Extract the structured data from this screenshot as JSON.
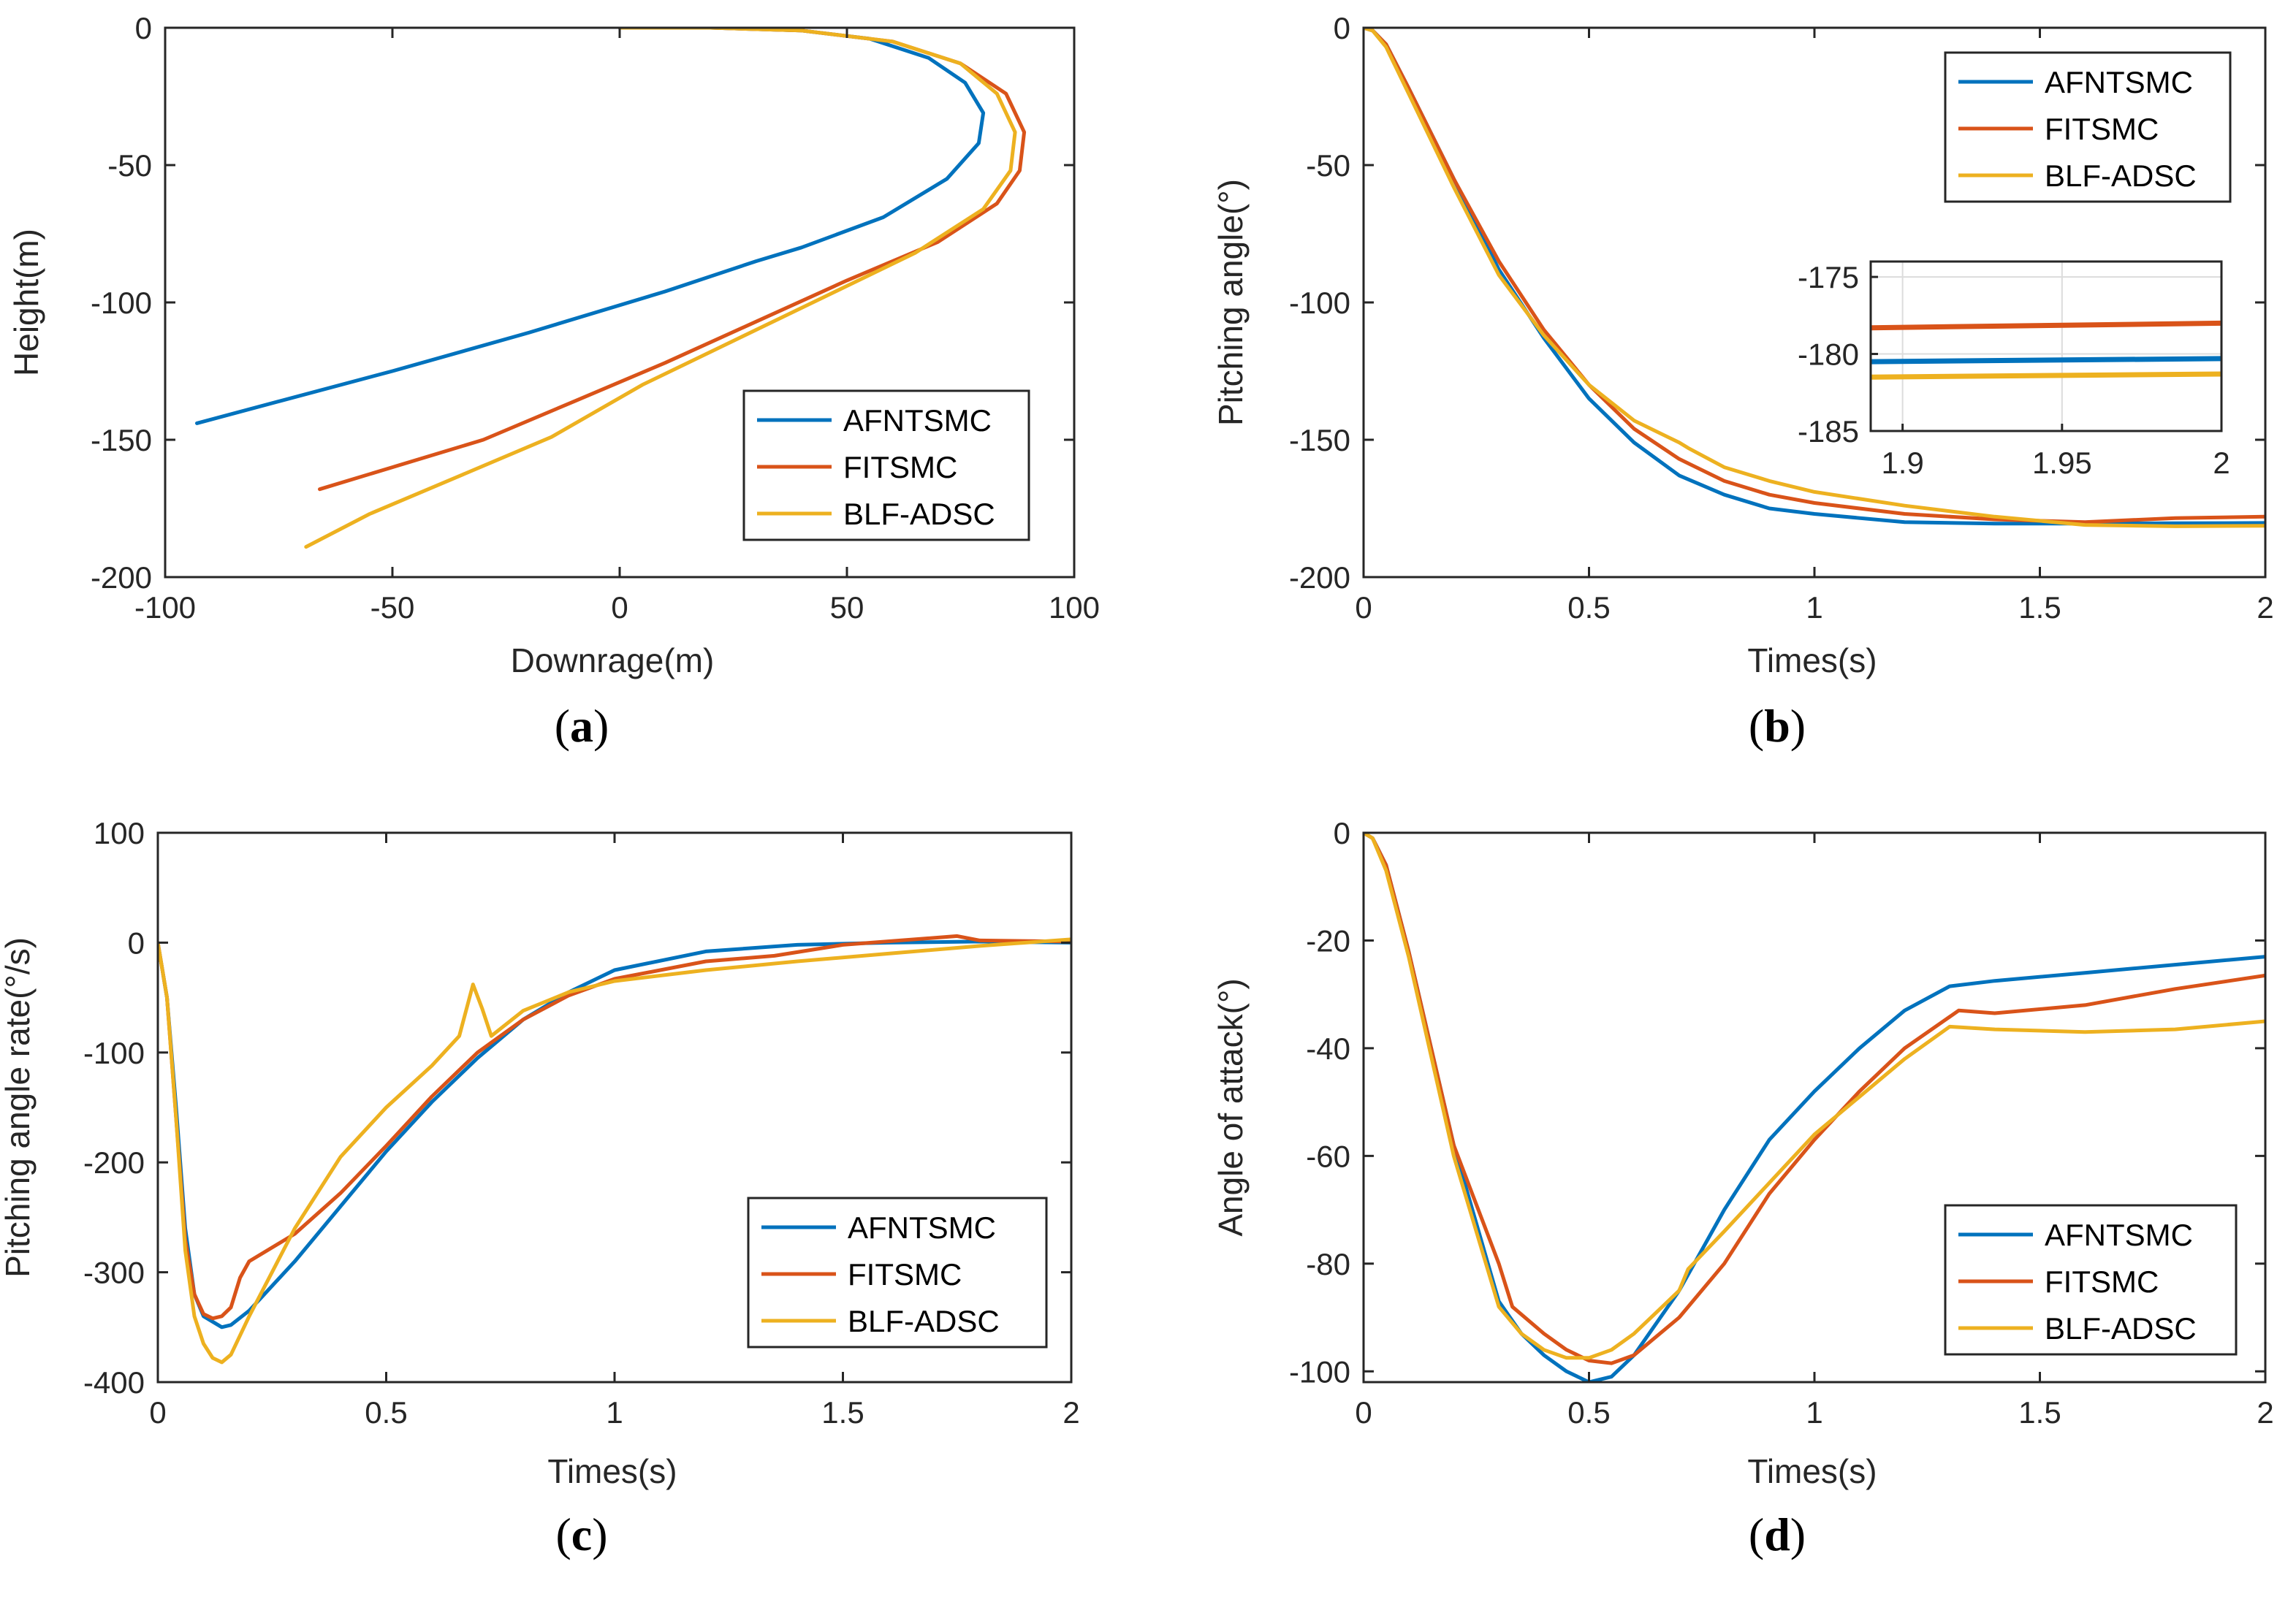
{
  "colors": {
    "AFNTSMC": "#0072BD",
    "FITSMC": "#D95319",
    "BLF-ADSC": "#EDB120",
    "axis": "#262626",
    "grid": "#dcdcdc"
  },
  "chart_data": [
    {
      "id": "a",
      "type": "line",
      "panel_label": "a",
      "xlabel": "Downrage(m)",
      "ylabel": "Height(m)",
      "xlim": [
        -100,
        100
      ],
      "ylim": [
        -200,
        0
      ],
      "xticks": [
        -100,
        -50,
        0,
        50,
        100
      ],
      "yticks": [
        0,
        -50,
        -100,
        -150,
        -200
      ],
      "xtick_labels": [
        "-100",
        "-50",
        "0",
        "50",
        "100"
      ],
      "ytick_labels": [
        "0",
        "-50",
        "-100",
        "-150",
        "-200"
      ],
      "legend": {
        "position": "bottom-right",
        "entries": [
          "AFNTSMC",
          "FITSMC",
          "BLF-ADSC"
        ]
      },
      "series": [
        {
          "name": "AFNTSMC",
          "x": [
            0,
            20,
            40,
            55,
            68,
            76,
            80,
            79,
            72,
            58,
            40,
            30,
            10,
            -20,
            -50,
            -75,
            -93
          ],
          "y": [
            0,
            0,
            -1,
            -4,
            -11,
            -20,
            -31,
            -42,
            -55,
            -69,
            -80,
            -85,
            -96,
            -111,
            -125,
            -136,
            -144
          ]
        },
        {
          "name": "FITSMC",
          "x": [
            0,
            20,
            40,
            60,
            75,
            85,
            89,
            88,
            83,
            70,
            50,
            30,
            10,
            -10,
            -30,
            -50,
            -66
          ],
          "y": [
            0,
            0,
            -1,
            -5,
            -13,
            -24,
            -38,
            -52,
            -64,
            -78,
            -92,
            -107,
            -122,
            -136,
            -150,
            -160,
            -168
          ]
        },
        {
          "name": "BLF-ADSC",
          "x": [
            0,
            20,
            40,
            60,
            75,
            83,
            87,
            86,
            80,
            65,
            45,
            25,
            5,
            -15,
            -35,
            -55,
            -69
          ],
          "y": [
            0,
            0,
            -1,
            -5,
            -13,
            -24,
            -38,
            -52,
            -66,
            -82,
            -98,
            -114,
            -130,
            -149,
            -163,
            -177,
            -189
          ]
        }
      ]
    },
    {
      "id": "b",
      "type": "line",
      "panel_label": "b",
      "xlabel": "Times(s)",
      "ylabel": "Pitching angle(°)",
      "xlim": [
        0,
        2
      ],
      "ylim": [
        -200,
        0
      ],
      "xticks": [
        0,
        0.5,
        1,
        1.5,
        2
      ],
      "yticks": [
        0,
        -50,
        -100,
        -150,
        -200
      ],
      "xtick_labels": [
        "0",
        "0.5",
        "1",
        "1.5",
        "2"
      ],
      "ytick_labels": [
        "0",
        "-50",
        "-100",
        "-150",
        "-200"
      ],
      "legend": {
        "position": "top-right",
        "entries": [
          "AFNTSMC",
          "FITSMC",
          "BLF-ADSC"
        ]
      },
      "series": [
        {
          "name": "AFNTSMC",
          "x": [
            0,
            0.02,
            0.05,
            0.1,
            0.2,
            0.3,
            0.4,
            0.5,
            0.6,
            0.7,
            0.8,
            0.9,
            1.0,
            1.2,
            1.4,
            1.6,
            1.8,
            2.0
          ],
          "y": [
            0,
            -1,
            -6,
            -22,
            -55,
            -88,
            -113,
            -135,
            -151,
            -163,
            -170,
            -175,
            -177,
            -180,
            -180.5,
            -180.5,
            -180.4,
            -180.3
          ]
        },
        {
          "name": "FITSMC",
          "x": [
            0,
            0.02,
            0.05,
            0.1,
            0.2,
            0.3,
            0.4,
            0.5,
            0.6,
            0.7,
            0.8,
            0.9,
            1.0,
            1.2,
            1.4,
            1.6,
            1.8,
            2.0
          ],
          "y": [
            0,
            -1,
            -6,
            -22,
            -55,
            -85,
            -110,
            -130,
            -146,
            -157,
            -165,
            -170,
            -173,
            -177,
            -179,
            -180,
            -178.5,
            -178
          ]
        },
        {
          "name": "BLF-ADSC",
          "x": [
            0,
            0.02,
            0.05,
            0.1,
            0.2,
            0.3,
            0.4,
            0.5,
            0.6,
            0.7,
            0.72,
            0.8,
            0.9,
            1.0,
            1.2,
            1.4,
            1.6,
            1.8,
            2.0
          ],
          "y": [
            0,
            -1,
            -7,
            -24,
            -58,
            -90,
            -112,
            -130,
            -143,
            -151,
            -153,
            -160,
            -165,
            -169,
            -174,
            -178,
            -181,
            -181.5,
            -181.3
          ]
        }
      ],
      "inset": {
        "xlim": [
          1.89,
          2
        ],
        "ylim": [
          -185,
          -174
        ],
        "xticks": [
          1.9,
          1.95,
          2
        ],
        "yticks": [
          -175,
          -180,
          -185
        ],
        "xtick_labels": [
          "1.9",
          "1.95",
          "2"
        ],
        "ytick_labels": [
          "-175",
          "-180",
          "-185"
        ],
        "grid": true,
        "series": [
          {
            "name": "AFNTSMC",
            "x": [
              1.89,
              2.0
            ],
            "y": [
              -180.5,
              -180.3
            ]
          },
          {
            "name": "FITSMC",
            "x": [
              1.89,
              2.0
            ],
            "y": [
              -178.3,
              -178.0
            ]
          },
          {
            "name": "BLF-ADSC",
            "x": [
              1.89,
              2.0
            ],
            "y": [
              -181.5,
              -181.3
            ]
          }
        ]
      }
    },
    {
      "id": "c",
      "type": "line",
      "panel_label": "c",
      "xlabel": "Times(s)",
      "ylabel": "Pitching angle rate(°/s)",
      "xlim": [
        0,
        2
      ],
      "ylim": [
        -400,
        100
      ],
      "xticks": [
        0,
        0.5,
        1,
        1.5,
        2
      ],
      "yticks": [
        100,
        0,
        -100,
        -200,
        -300,
        -400
      ],
      "xtick_labels": [
        "0",
        "0.5",
        "1",
        "1.5",
        "2"
      ],
      "ytick_labels": [
        "100",
        "0",
        "-100",
        "-200",
        "-300",
        "-400"
      ],
      "legend": {
        "position": "bottom-right",
        "entries": [
          "AFNTSMC",
          "FITSMC",
          "BLF-ADSC"
        ]
      },
      "series": [
        {
          "name": "AFNTSMC",
          "x": [
            0,
            0.02,
            0.04,
            0.06,
            0.08,
            0.1,
            0.12,
            0.14,
            0.16,
            0.2,
            0.3,
            0.4,
            0.5,
            0.6,
            0.7,
            0.8,
            0.9,
            1.0,
            1.2,
            1.4,
            1.6,
            1.8,
            2.0
          ],
          "y": [
            0,
            -50,
            -150,
            -260,
            -320,
            -340,
            -345,
            -350,
            -348,
            -335,
            -290,
            -240,
            -190,
            -145,
            -105,
            -70,
            -45,
            -25,
            -8,
            -2,
            0,
            1,
            0
          ]
        },
        {
          "name": "FITSMC",
          "x": [
            0,
            0.02,
            0.04,
            0.06,
            0.08,
            0.1,
            0.12,
            0.14,
            0.16,
            0.18,
            0.2,
            0.3,
            0.4,
            0.5,
            0.6,
            0.7,
            0.8,
            0.9,
            1.0,
            1.2,
            1.35,
            1.5,
            1.75,
            1.8,
            2.0
          ],
          "y": [
            0,
            -50,
            -160,
            -270,
            -320,
            -338,
            -342,
            -340,
            -332,
            -305,
            -290,
            -265,
            -228,
            -185,
            -140,
            -100,
            -70,
            -48,
            -33,
            -17,
            -12,
            -2,
            6,
            2,
            1
          ]
        },
        {
          "name": "BLF-ADSC",
          "x": [
            0,
            0.02,
            0.04,
            0.06,
            0.08,
            0.1,
            0.12,
            0.14,
            0.16,
            0.2,
            0.3,
            0.4,
            0.5,
            0.6,
            0.66,
            0.69,
            0.71,
            0.73,
            0.8,
            0.9,
            1.0,
            1.2,
            1.4,
            1.6,
            1.8,
            2.0
          ],
          "y": [
            0,
            -50,
            -160,
            -280,
            -340,
            -365,
            -378,
            -382,
            -375,
            -340,
            -260,
            -195,
            -150,
            -112,
            -85,
            -38,
            -60,
            -85,
            -62,
            -45,
            -35,
            -25,
            -17,
            -10,
            -3,
            3
          ]
        }
      ]
    },
    {
      "id": "d",
      "type": "line",
      "panel_label": "d",
      "xlabel": "Times(s)",
      "ylabel": "Angle of attack(°)",
      "xlim": [
        0,
        2
      ],
      "ylim": [
        -102,
        0
      ],
      "xticks": [
        0,
        0.5,
        1,
        1.5,
        2
      ],
      "yticks": [
        0,
        -20,
        -40,
        -60,
        -80,
        -100
      ],
      "xtick_labels": [
        "0",
        "0.5",
        "1",
        "1.5",
        "2"
      ],
      "ytick_labels": [
        "0",
        "-20",
        "-40",
        "-60",
        "-80",
        "-100"
      ],
      "legend": {
        "position": "bottom-right",
        "entries": [
          "AFNTSMC",
          "FITSMC",
          "BLF-ADSC"
        ]
      },
      "series": [
        {
          "name": "AFNTSMC",
          "x": [
            0,
            0.02,
            0.05,
            0.1,
            0.2,
            0.3,
            0.35,
            0.4,
            0.45,
            0.5,
            0.55,
            0.6,
            0.7,
            0.8,
            0.9,
            1.0,
            1.1,
            1.2,
            1.3,
            1.4,
            1.6,
            1.8,
            2.0
          ],
          "y": [
            0,
            -1,
            -6,
            -22,
            -58,
            -87,
            -93,
            -97,
            -100,
            -102,
            -101,
            -97,
            -85,
            -70,
            -57,
            -48,
            -40,
            -33,
            -28.5,
            -27.5,
            -26,
            -24.5,
            -23
          ]
        },
        {
          "name": "FITSMC",
          "x": [
            0,
            0.02,
            0.05,
            0.1,
            0.2,
            0.3,
            0.33,
            0.4,
            0.45,
            0.5,
            0.55,
            0.6,
            0.7,
            0.8,
            0.9,
            1.0,
            1.1,
            1.2,
            1.32,
            1.4,
            1.6,
            1.8,
            2.0
          ],
          "y": [
            0,
            -1,
            -6,
            -22,
            -58,
            -80,
            -88,
            -93,
            -96,
            -98,
            -98.5,
            -97,
            -90,
            -80,
            -67,
            -57,
            -48,
            -40,
            -33,
            -33.5,
            -32,
            -29,
            -26.5
          ]
        },
        {
          "name": "BLF-ADSC",
          "x": [
            0,
            0.02,
            0.05,
            0.1,
            0.2,
            0.3,
            0.35,
            0.4,
            0.45,
            0.5,
            0.55,
            0.6,
            0.65,
            0.7,
            0.72,
            0.8,
            0.9,
            1.0,
            1.1,
            1.2,
            1.3,
            1.4,
            1.6,
            1.8,
            2.0
          ],
          "y": [
            0,
            -1,
            -7,
            -23,
            -60,
            -88,
            -93,
            -96,
            -97.5,
            -97.5,
            -96,
            -93,
            -89,
            -85,
            -81,
            -74,
            -65,
            -56,
            -49,
            -42,
            -36,
            -36.5,
            -37,
            -36.5,
            -35
          ]
        }
      ]
    }
  ]
}
